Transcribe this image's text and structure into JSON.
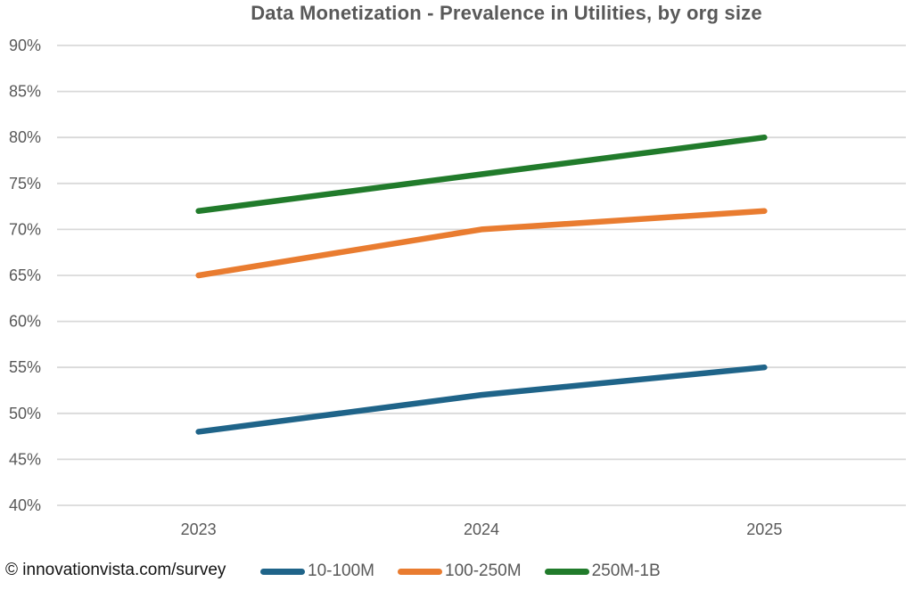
{
  "title": "Data Monetization - Prevalence in Utilities, by org size",
  "footer": {
    "copyright": "© innovationvista.com/survey"
  },
  "colors": {
    "background": "#FFFFFF",
    "title_text": "#595959",
    "axis_text": "#595959",
    "gridline": "#D9D9D9",
    "copyright_text": "#121212",
    "series_blue": "#1F6489",
    "series_orange": "#E97C30",
    "series_green": "#217B2B"
  },
  "chart_data": {
    "type": "line",
    "title": "Data Monetization - Prevalence in Utilities, by org size",
    "categories": [
      "2023",
      "2024",
      "2025"
    ],
    "series": [
      {
        "name": "10-100M",
        "color": "#1F6489",
        "values": [
          48,
          52,
          55
        ]
      },
      {
        "name": "100-250M",
        "color": "#E97C30",
        "values": [
          65,
          70,
          72
        ]
      },
      {
        "name": "250M-1B",
        "color": "#217B2B",
        "values": [
          72,
          76,
          80
        ]
      }
    ],
    "ylabel": "",
    "xlabel": "",
    "ylim": [
      40,
      90
    ],
    "ytick_step": 5,
    "ytick_format": "percent",
    "grid": "horizontal",
    "legend_position": "bottom",
    "source_note": "© innovationvista.com/survey"
  }
}
